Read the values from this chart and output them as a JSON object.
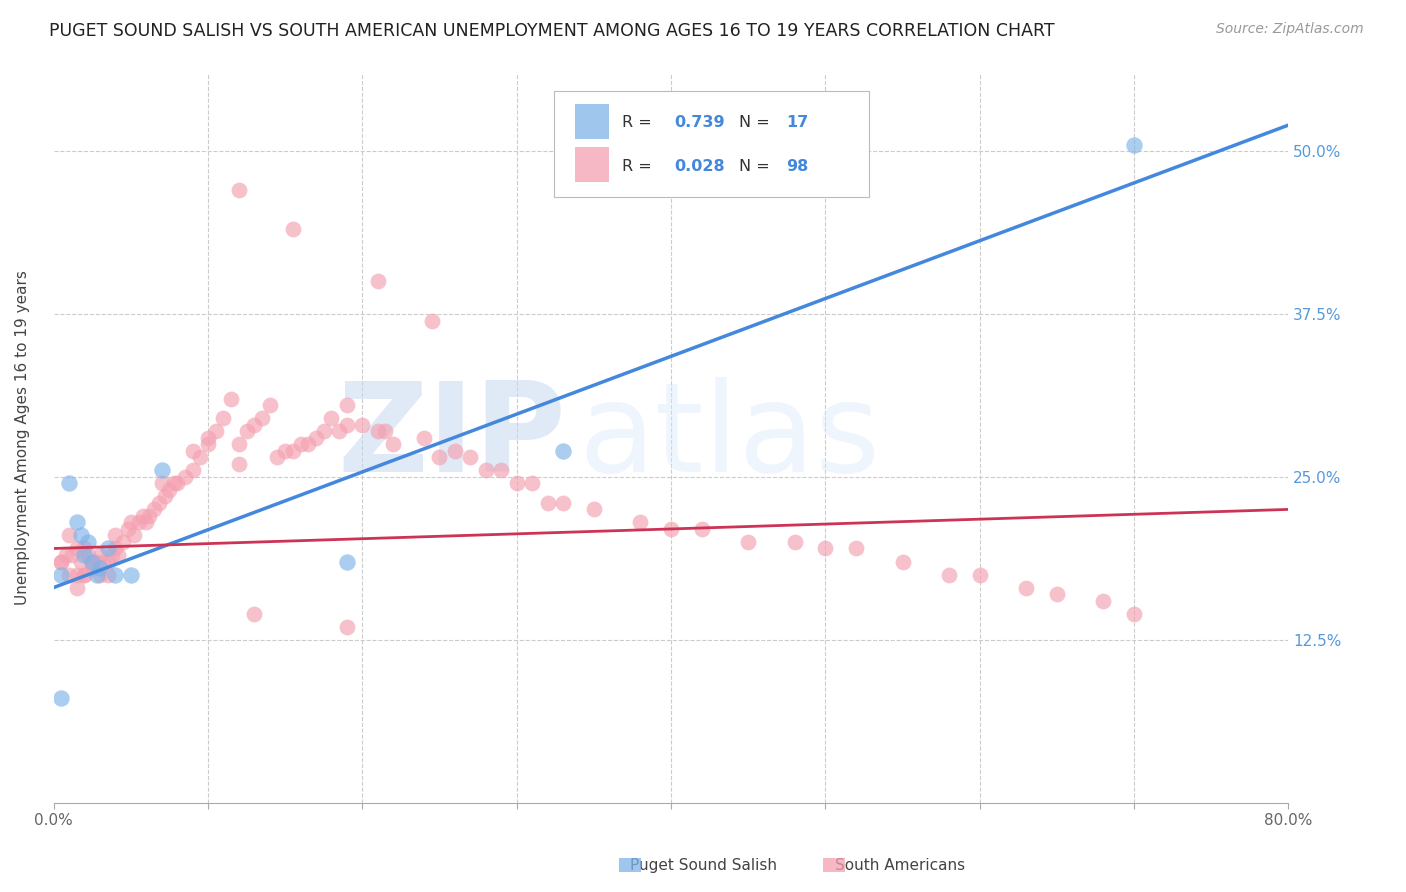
{
  "title": "PUGET SOUND SALISH VS SOUTH AMERICAN UNEMPLOYMENT AMONG AGES 16 TO 19 YEARS CORRELATION CHART",
  "source": "Source: ZipAtlas.com",
  "ylabel": "Unemployment Among Ages 16 to 19 years",
  "xlim": [
    0.0,
    0.8
  ],
  "ylim": [
    0.0,
    0.56
  ],
  "background_color": "#ffffff",
  "grid_color": "#cccccc",
  "watermark_zip": "ZIP",
  "watermark_atlas": "atlas",
  "legend1_label": "Puget Sound Salish",
  "legend2_label": "South Americans",
  "R1": "0.739",
  "N1": "17",
  "R2": "0.028",
  "N2": "98",
  "blue_color": "#7fb3e8",
  "pink_color": "#f4a0b0",
  "line_blue": "#4488dd",
  "line_pink": "#cc3355",
  "puget_x": [
    0.005,
    0.01,
    0.015,
    0.018,
    0.02,
    0.022,
    0.025,
    0.028,
    0.03,
    0.035,
    0.04,
    0.05,
    0.07,
    0.19,
    0.33,
    0.7,
    0.005
  ],
  "puget_y": [
    0.08,
    0.245,
    0.215,
    0.205,
    0.19,
    0.2,
    0.185,
    0.175,
    0.18,
    0.195,
    0.175,
    0.175,
    0.255,
    0.185,
    0.27,
    0.505,
    0.175
  ],
  "blue_line_x0": 0.0,
  "blue_line_y0": 0.165,
  "blue_line_x1": 0.8,
  "blue_line_y1": 0.52,
  "pink_line_x0": 0.0,
  "pink_line_y0": 0.195,
  "pink_line_x1": 0.8,
  "pink_line_y1": 0.225,
  "south_x": [
    0.005,
    0.008,
    0.01,
    0.012,
    0.015,
    0.015,
    0.018,
    0.02,
    0.02,
    0.022,
    0.025,
    0.025,
    0.028,
    0.03,
    0.03,
    0.032,
    0.035,
    0.035,
    0.038,
    0.04,
    0.04,
    0.042,
    0.045,
    0.048,
    0.05,
    0.052,
    0.055,
    0.058,
    0.06,
    0.062,
    0.065,
    0.068,
    0.07,
    0.072,
    0.075,
    0.078,
    0.08,
    0.085,
    0.09,
    0.09,
    0.095,
    0.1,
    0.1,
    0.105,
    0.11,
    0.115,
    0.12,
    0.12,
    0.125,
    0.13,
    0.135,
    0.14,
    0.145,
    0.15,
    0.155,
    0.16,
    0.165,
    0.17,
    0.175,
    0.18,
    0.185,
    0.19,
    0.19,
    0.2,
    0.21,
    0.215,
    0.22,
    0.24,
    0.25,
    0.26,
    0.27,
    0.28,
    0.29,
    0.3,
    0.31,
    0.32,
    0.33,
    0.35,
    0.38,
    0.4,
    0.42,
    0.45,
    0.48,
    0.5,
    0.52,
    0.55,
    0.58,
    0.6,
    0.63,
    0.65,
    0.68,
    0.7,
    0.005,
    0.01,
    0.015,
    0.02,
    0.13,
    0.19
  ],
  "south_y": [
    0.185,
    0.19,
    0.205,
    0.19,
    0.195,
    0.175,
    0.185,
    0.175,
    0.195,
    0.19,
    0.185,
    0.18,
    0.185,
    0.19,
    0.175,
    0.185,
    0.185,
    0.175,
    0.19,
    0.205,
    0.195,
    0.19,
    0.2,
    0.21,
    0.215,
    0.205,
    0.215,
    0.22,
    0.215,
    0.22,
    0.225,
    0.23,
    0.245,
    0.235,
    0.24,
    0.245,
    0.245,
    0.25,
    0.255,
    0.27,
    0.265,
    0.28,
    0.275,
    0.285,
    0.295,
    0.31,
    0.26,
    0.275,
    0.285,
    0.29,
    0.295,
    0.305,
    0.265,
    0.27,
    0.27,
    0.275,
    0.275,
    0.28,
    0.285,
    0.295,
    0.285,
    0.29,
    0.305,
    0.29,
    0.285,
    0.285,
    0.275,
    0.28,
    0.265,
    0.27,
    0.265,
    0.255,
    0.255,
    0.245,
    0.245,
    0.23,
    0.23,
    0.225,
    0.215,
    0.21,
    0.21,
    0.2,
    0.2,
    0.195,
    0.195,
    0.185,
    0.175,
    0.175,
    0.165,
    0.16,
    0.155,
    0.145,
    0.185,
    0.175,
    0.165,
    0.175,
    0.145,
    0.135
  ]
}
